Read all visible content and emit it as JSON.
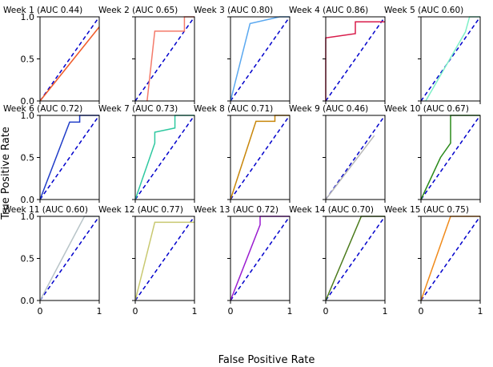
{
  "figure": {
    "xlabel": "False Positive Rate",
    "ylabel": "True Positive Rate",
    "diagonal_color": "#0000cc"
  },
  "chart_data": [
    {
      "type": "line",
      "title": "Week 1 (AUC 0.44)",
      "color": "#f05a28",
      "xlim": [
        0,
        1
      ],
      "ylim": [
        0,
        1
      ],
      "xticks": [
        "0",
        "1"
      ],
      "yticks": [
        "0.0",
        "0.5",
        "1.0"
      ],
      "show_xticklabels": false,
      "show_yticklabels": true,
      "x": [
        0,
        1
      ],
      "y": [
        0,
        0.88
      ]
    },
    {
      "type": "line",
      "title": "Week 2 (AUC 0.65)",
      "color": "#f47a6a",
      "xlim": [
        0,
        1
      ],
      "ylim": [
        0,
        1
      ],
      "xticks": [
        "0",
        "1"
      ],
      "yticks": [
        "0.0",
        "0.5",
        "1.0"
      ],
      "show_xticklabels": false,
      "show_yticklabels": false,
      "x": [
        0.2,
        0.2,
        0.33,
        0.83,
        0.83,
        1
      ],
      "y": [
        0,
        0,
        0.83,
        0.83,
        1,
        1
      ]
    },
    {
      "type": "line",
      "title": "Week 3 (AUC 0.80)",
      "color": "#5aa8f0",
      "xlim": [
        0,
        1
      ],
      "ylim": [
        0,
        1
      ],
      "xticks": [
        "0",
        "1"
      ],
      "yticks": [
        "0.0",
        "0.5",
        "1.0"
      ],
      "show_xticklabels": false,
      "show_yticklabels": false,
      "x": [
        0,
        0.33,
        0.83,
        1
      ],
      "y": [
        0,
        0.92,
        1,
        1
      ]
    },
    {
      "type": "line",
      "title": "Week 4 (AUC 0.86)",
      "color": "#d81b4a",
      "xlim": [
        0,
        1
      ],
      "ylim": [
        0,
        1
      ],
      "xticks": [
        "0",
        "1"
      ],
      "yticks": [
        "0.0",
        "0.5",
        "1.0"
      ],
      "show_xticklabels": false,
      "show_yticklabels": false,
      "x": [
        0,
        0,
        0.5,
        0.5,
        1
      ],
      "y": [
        0,
        0.75,
        0.8,
        0.94,
        0.94
      ]
    },
    {
      "type": "line",
      "title": "Week 5 (AUC 0.60)",
      "color": "#7ff0c8",
      "xlim": [
        0,
        1
      ],
      "ylim": [
        0,
        1
      ],
      "xticks": [
        "0",
        "1"
      ],
      "yticks": [
        "0.0",
        "0.5",
        "1.0"
      ],
      "show_xticklabels": false,
      "show_yticklabels": false,
      "x": [
        0.08,
        0.75,
        0.82,
        1
      ],
      "y": [
        0,
        0.82,
        1,
        1
      ]
    },
    {
      "type": "line",
      "title": "Week 6 (AUC 0.72)",
      "color": "#1f3cc8",
      "xlim": [
        0,
        1
      ],
      "ylim": [
        0,
        1
      ],
      "xticks": [
        "0",
        "1"
      ],
      "yticks": [
        "0.0",
        "0.5",
        "1.0"
      ],
      "show_xticklabels": false,
      "show_yticklabels": true,
      "x": [
        0,
        0.5,
        0.67,
        0.67,
        1
      ],
      "y": [
        0,
        0.92,
        0.92,
        1,
        1
      ]
    },
    {
      "type": "line",
      "title": "Week 7 (AUC 0.73)",
      "color": "#2ec8a0",
      "xlim": [
        0,
        1
      ],
      "ylim": [
        0,
        1
      ],
      "xticks": [
        "0",
        "1"
      ],
      "yticks": [
        "0.0",
        "0.5",
        "1.0"
      ],
      "show_xticklabels": false,
      "show_yticklabels": false,
      "x": [
        0,
        0.33,
        0.33,
        0.67,
        0.67,
        1
      ],
      "y": [
        0,
        0.67,
        0.8,
        0.85,
        1,
        1
      ]
    },
    {
      "type": "line",
      "title": "Week 8 (AUC 0.71)",
      "color": "#c8860a",
      "xlim": [
        0,
        1
      ],
      "ylim": [
        0,
        1
      ],
      "xticks": [
        "0",
        "1"
      ],
      "yticks": [
        "0.0",
        "0.5",
        "1.0"
      ],
      "show_xticklabels": false,
      "show_yticklabels": false,
      "x": [
        0,
        0.43,
        0.75,
        0.75,
        1
      ],
      "y": [
        0,
        0.93,
        0.93,
        1,
        1
      ]
    },
    {
      "type": "line",
      "title": "Week 9 (AUC 0.46)",
      "color": "#b8b8b8",
      "xlim": [
        0,
        1
      ],
      "ylim": [
        0,
        1
      ],
      "xticks": [
        "0",
        "1"
      ],
      "yticks": [
        "0.0",
        "0.5",
        "1.0"
      ],
      "show_xticklabels": false,
      "show_yticklabels": false,
      "x": [
        0,
        0.82
      ],
      "y": [
        0,
        0.76
      ]
    },
    {
      "type": "line",
      "title": "Week 10 (AUC 0.67)",
      "color": "#2a8a1a",
      "xlim": [
        0,
        1
      ],
      "ylim": [
        0,
        1
      ],
      "xticks": [
        "0",
        "1"
      ],
      "yticks": [
        "0.0",
        "0.5",
        "1.0"
      ],
      "show_xticklabels": false,
      "show_yticklabels": false,
      "x": [
        0,
        0.33,
        0.5,
        0.5,
        1
      ],
      "y": [
        0,
        0.5,
        0.67,
        1,
        1
      ]
    },
    {
      "type": "line",
      "title": "Week 11 (AUC 0.60)",
      "color": "#b8c4c8",
      "xlim": [
        0,
        1
      ],
      "ylim": [
        0,
        1
      ],
      "xticks": [
        "0",
        "1"
      ],
      "yticks": [
        "0.0",
        "0.5",
        "1.0"
      ],
      "show_xticklabels": true,
      "show_yticklabels": true,
      "x": [
        0,
        0.75,
        1
      ],
      "y": [
        0,
        1,
        1
      ]
    },
    {
      "type": "line",
      "title": "Week 12 (AUC 0.77)",
      "color": "#c8c870",
      "xlim": [
        0,
        1
      ],
      "ylim": [
        0,
        1
      ],
      "xticks": [
        "0",
        "1"
      ],
      "yticks": [
        "0.0",
        "0.5",
        "1.0"
      ],
      "show_xticklabels": true,
      "show_yticklabels": false,
      "x": [
        0,
        0.33,
        1
      ],
      "y": [
        0,
        0.93,
        0.93
      ]
    },
    {
      "type": "line",
      "title": "Week 13 (AUC 0.72)",
      "color": "#9a1ad0",
      "xlim": [
        0,
        1
      ],
      "ylim": [
        0,
        1
      ],
      "xticks": [
        "0",
        "1"
      ],
      "yticks": [
        "0.0",
        "0.5",
        "1.0"
      ],
      "show_xticklabels": true,
      "show_yticklabels": false,
      "x": [
        0,
        0.5,
        0.5,
        1
      ],
      "y": [
        0,
        0.9,
        1,
        1
      ]
    },
    {
      "type": "line",
      "title": "Week 14 (AUC 0.70)",
      "color": "#4a7a1a",
      "xlim": [
        0,
        1
      ],
      "ylim": [
        0,
        1
      ],
      "xticks": [
        "0",
        "1"
      ],
      "yticks": [
        "0.0",
        "0.5",
        "1.0"
      ],
      "show_xticklabels": true,
      "show_yticklabels": false,
      "x": [
        0,
        0.6,
        1
      ],
      "y": [
        0,
        1,
        1
      ]
    },
    {
      "type": "line",
      "title": "Week 15 (AUC 0.75)",
      "color": "#f08a1a",
      "xlim": [
        0,
        1
      ],
      "ylim": [
        0,
        1
      ],
      "xticks": [
        "0",
        "1"
      ],
      "yticks": [
        "0.0",
        "0.5",
        "1.0"
      ],
      "show_xticklabels": true,
      "show_yticklabels": false,
      "x": [
        0,
        0.5,
        1
      ],
      "y": [
        0,
        1,
        1
      ]
    }
  ]
}
